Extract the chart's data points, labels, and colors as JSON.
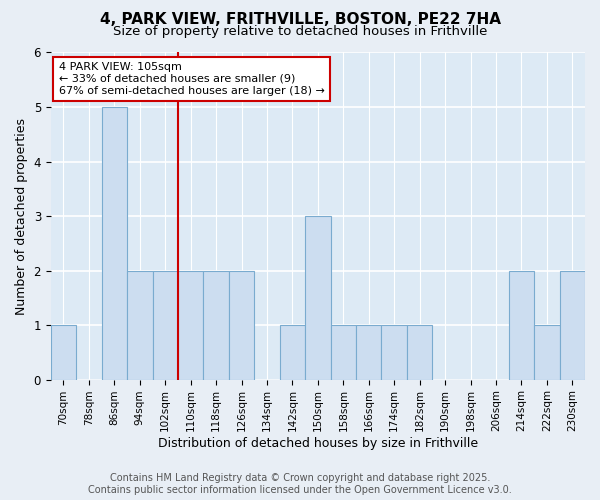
{
  "title": "4, PARK VIEW, FRITHVILLE, BOSTON, PE22 7HA",
  "subtitle": "Size of property relative to detached houses in Frithville",
  "xlabel": "Distribution of detached houses by size in Frithville",
  "ylabel": "Number of detached properties",
  "bins": [
    "70sqm",
    "78sqm",
    "86sqm",
    "94sqm",
    "102sqm",
    "110sqm",
    "118sqm",
    "126sqm",
    "134sqm",
    "142sqm",
    "150sqm",
    "158sqm",
    "166sqm",
    "174sqm",
    "182sqm",
    "190sqm",
    "198sqm",
    "206sqm",
    "214sqm",
    "222sqm",
    "230sqm"
  ],
  "values": [
    1,
    0,
    5,
    2,
    2,
    2,
    2,
    2,
    0,
    1,
    3,
    1,
    1,
    1,
    1,
    0,
    0,
    0,
    2,
    1,
    2
  ],
  "bar_color": "#ccddf0",
  "bar_edge_color": "#7aabcf",
  "highlight_line_index": 4,
  "highlight_color": "#cc0000",
  "annotation_text": "4 PARK VIEW: 105sqm\n← 33% of detached houses are smaller (9)\n67% of semi-detached houses are larger (18) →",
  "annotation_box_color": "#ffffff",
  "annotation_box_edge": "#cc0000",
  "ylim": [
    0,
    6
  ],
  "yticks": [
    0,
    1,
    2,
    3,
    4,
    5,
    6
  ],
  "footer": "Contains HM Land Registry data © Crown copyright and database right 2025.\nContains public sector information licensed under the Open Government Licence v3.0.",
  "bg_color": "#e8eef5",
  "plot_bg_color": "#ddeaf5",
  "grid_color": "#ffffff",
  "title_fontsize": 11,
  "subtitle_fontsize": 9.5,
  "axis_label_fontsize": 9,
  "tick_fontsize": 7.5,
  "footer_fontsize": 7
}
